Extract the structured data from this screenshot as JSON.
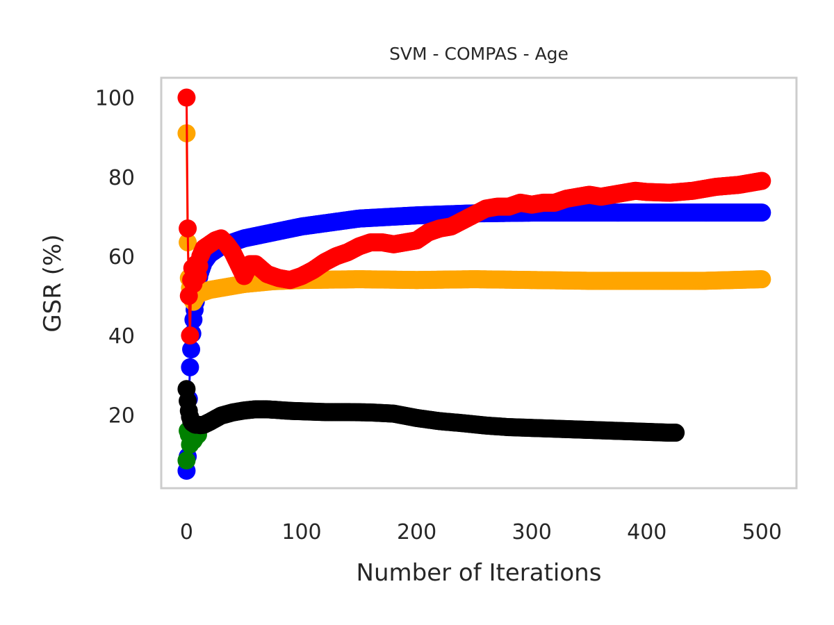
{
  "chart_data": {
    "type": "line",
    "title": "SVM - COMPAS - Age",
    "xlabel": "Number of Iterations",
    "ylabel": "GSR (%)",
    "xlim": [
      -22,
      530
    ],
    "ylim": [
      1.5,
      105
    ],
    "xticks": [
      "0",
      "100",
      "200",
      "300",
      "400",
      "500"
    ],
    "xtick_values": [
      0,
      100,
      200,
      300,
      400,
      500
    ],
    "yticks": [
      "20",
      "40",
      "60",
      "80",
      "100"
    ],
    "ytick_values": [
      20,
      40,
      60,
      80,
      100
    ],
    "grid": false,
    "series": [
      {
        "color": "#0000ff",
        "x": [
          0,
          1,
          2,
          3,
          4,
          5,
          6,
          7,
          8,
          9,
          10,
          12,
          15,
          20,
          30,
          50,
          75,
          100,
          150,
          200,
          250,
          300,
          350,
          400,
          450,
          500
        ],
        "y": [
          5.9,
          9.5,
          24,
          32,
          36.5,
          40.5,
          44,
          46.5,
          48.5,
          51,
          53.5,
          56,
          58.5,
          60.5,
          62.5,
          64.5,
          66,
          67.5,
          69.5,
          70.3,
          70.8,
          71,
          71,
          71,
          71,
          71
        ]
      },
      {
        "color": "#ffa500",
        "x": [
          0,
          1,
          2,
          3,
          4,
          5,
          6,
          8,
          10,
          15,
          20,
          30,
          50,
          75,
          100,
          150,
          200,
          250,
          300,
          350,
          400,
          450,
          500
        ],
        "y": [
          91,
          63.5,
          54.5,
          52,
          50.5,
          49,
          48.5,
          49.5,
          50.5,
          51,
          51.5,
          52,
          53,
          53.7,
          54,
          54.2,
          54,
          54.2,
          54,
          53.8,
          53.8,
          53.8,
          54.2
        ]
      },
      {
        "color": "#ff0000",
        "x": [
          0,
          1,
          2,
          3,
          4,
          5,
          6,
          7,
          8,
          10,
          12,
          15,
          20,
          25,
          30,
          35,
          40,
          45,
          50,
          55,
          60,
          70,
          80,
          90,
          100,
          110,
          120,
          130,
          140,
          150,
          160,
          170,
          180,
          190,
          200,
          210,
          220,
          230,
          240,
          250,
          260,
          270,
          280,
          290,
          300,
          310,
          320,
          330,
          340,
          350,
          360,
          370,
          380,
          390,
          400,
          420,
          440,
          460,
          480,
          500
        ],
        "y": [
          100,
          67,
          50,
          40,
          54,
          57,
          53,
          55,
          58,
          55,
          60,
          62,
          63,
          64,
          64.5,
          63,
          61,
          58,
          55,
          58,
          58,
          55.5,
          54.5,
          54,
          55,
          56.5,
          58.5,
          60,
          61,
          62.5,
          63.5,
          63.5,
          63,
          63.5,
          64,
          66,
          67,
          67.5,
          69,
          70.5,
          72,
          72.5,
          72.5,
          73.5,
          73,
          73.5,
          73.5,
          74.5,
          75,
          75.5,
          75,
          75.5,
          76,
          76.5,
          76.2,
          76,
          76.5,
          77.5,
          78,
          79
        ]
      },
      {
        "color": "#008000",
        "x": [
          0,
          1,
          2,
          3,
          4,
          5,
          6,
          8,
          10
        ],
        "y": [
          8.5,
          16,
          15,
          12.5,
          13,
          14.5,
          13.5,
          14.5,
          15
        ]
      },
      {
        "color": "#000000",
        "x": [
          0,
          1,
          2,
          3,
          4,
          5,
          6,
          7,
          8,
          10,
          12,
          15,
          20,
          25,
          30,
          40,
          50,
          60,
          70,
          80,
          90,
          100,
          120,
          140,
          160,
          180,
          200,
          220,
          240,
          260,
          280,
          300,
          320,
          340,
          360,
          380,
          400,
          410,
          420,
          425
        ],
        "y": [
          26.5,
          23.5,
          21,
          19.5,
          18.5,
          18,
          17.8,
          17.6,
          17.5,
          17.5,
          17.4,
          17.5,
          18.2,
          19,
          19.8,
          20.6,
          21.1,
          21.4,
          21.4,
          21.2,
          21,
          20.9,
          20.7,
          20.7,
          20.6,
          20.3,
          19.2,
          18.4,
          17.9,
          17.3,
          16.9,
          16.7,
          16.5,
          16.3,
          16.1,
          15.9,
          15.7,
          15.6,
          15.5,
          15.5
        ]
      }
    ]
  }
}
